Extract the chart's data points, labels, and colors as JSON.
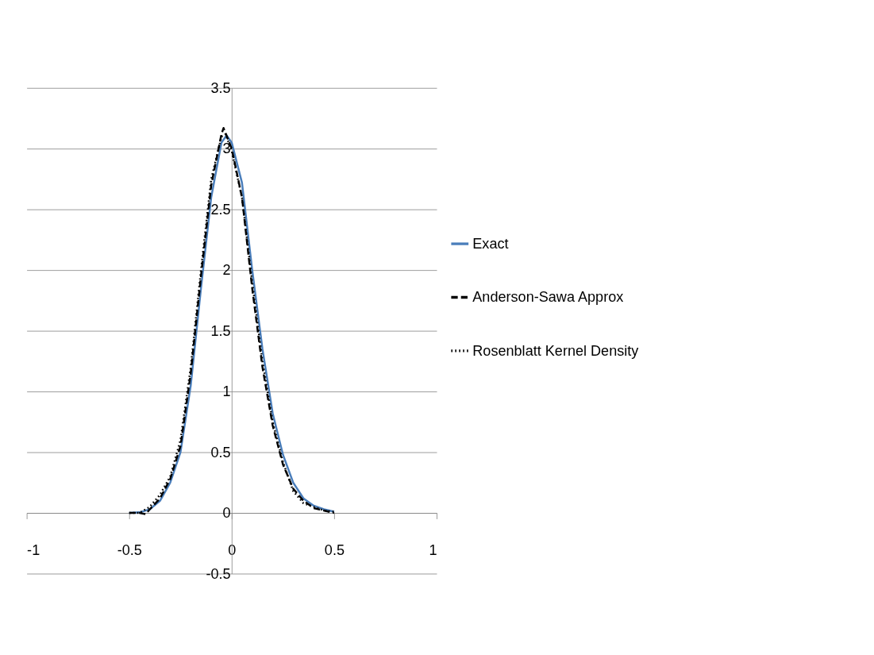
{
  "chart_data": {
    "type": "line",
    "xlim": [
      -1,
      1
    ],
    "xticks": [
      -1,
      -0.5,
      0,
      0.5,
      1
    ],
    "ylim": [
      -0.5,
      3.5
    ],
    "yticks": [
      -0.5,
      0,
      0.5,
      1,
      1.5,
      2,
      2.5,
      3,
      3.5
    ],
    "grid": "y",
    "legend": "right",
    "marker": "none",
    "series": [
      {
        "name": "Exact",
        "color": "#4a7ebb",
        "line_style": "solid",
        "x": [
          -0.5,
          -0.45,
          -0.4,
          -0.35,
          -0.3,
          -0.25,
          -0.2,
          -0.15,
          -0.1,
          -0.05,
          -0.025,
          0,
          0.05,
          0.1,
          0.15,
          0.2,
          0.25,
          0.3,
          0.35,
          0.4,
          0.45,
          0.5
        ],
        "values": [
          0.0,
          0.005,
          0.03,
          0.1,
          0.25,
          0.5,
          1.05,
          1.85,
          2.6,
          3.05,
          3.11,
          3.05,
          2.72,
          2.0,
          1.35,
          0.82,
          0.48,
          0.25,
          0.12,
          0.06,
          0.03,
          0.01
        ]
      },
      {
        "name": "Anderson-Sawa Approx",
        "color": "#000000",
        "line_style": "dashed",
        "x": [
          -0.5,
          -0.45,
          -0.42,
          -0.4,
          -0.35,
          -0.3,
          -0.25,
          -0.2,
          -0.15,
          -0.1,
          -0.05,
          -0.04,
          0,
          0.05,
          0.1,
          0.15,
          0.2,
          0.25,
          0.3,
          0.35,
          0.4,
          0.45,
          0.5
        ],
        "values": [
          0.0,
          0.0,
          -0.01,
          0.03,
          0.12,
          0.28,
          0.55,
          1.15,
          1.95,
          2.7,
          3.12,
          3.17,
          3.0,
          2.6,
          1.85,
          1.2,
          0.72,
          0.4,
          0.2,
          0.1,
          0.04,
          0.02,
          0.0
        ]
      },
      {
        "name": "Rosenblatt Kernel Density",
        "color": "#000000",
        "line_style": "dotted",
        "x": [
          -0.5,
          -0.45,
          -0.4,
          -0.35,
          -0.3,
          -0.25,
          -0.2,
          -0.15,
          -0.1,
          -0.05,
          -0.03,
          0,
          0.03,
          0.05,
          0.1,
          0.15,
          0.2,
          0.25,
          0.3,
          0.35,
          0.4,
          0.45,
          0.5
        ],
        "values": [
          0.0,
          0.0,
          0.05,
          0.15,
          0.3,
          0.6,
          1.2,
          2.0,
          2.75,
          3.1,
          3.12,
          2.98,
          2.75,
          2.6,
          1.9,
          1.25,
          0.75,
          0.42,
          0.18,
          0.08,
          0.05,
          0.02,
          0.01
        ]
      }
    ]
  }
}
